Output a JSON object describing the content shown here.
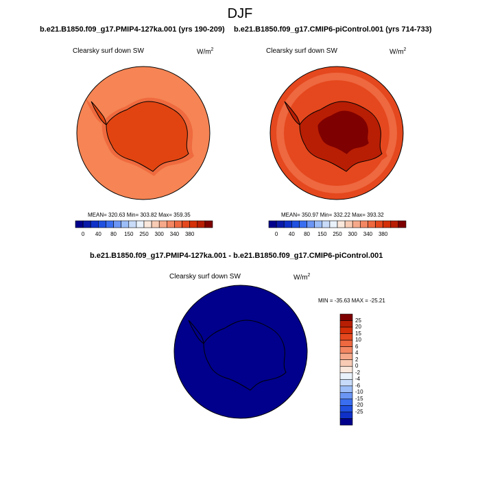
{
  "figure": {
    "season": "DJF"
  },
  "panels": [
    {
      "case": "b.e21.B1850.f09_g17.PMIP4-127ka.001 (yrs 190-209)",
      "variable": "Clearsky surf down SW",
      "units": "W/m",
      "units_exp": "2",
      "stats": "MEAN= 320.63 Min= 303.82 Max= 359.35"
    },
    {
      "case": "b.e21.B1850.f09_g17.CMIP6-piControl.001 (yrs 714-733)",
      "variable": "Clearsky surf down SW",
      "units": "W/m",
      "units_exp": "2",
      "stats": "MEAN= 350.97 Min= 332.22 Max= 393.32"
    },
    {
      "case": "b.e21.B1850.f09_g17.PMIP4-127ka.001 - b.e21.B1850.f09_g17.CMIP6-piControl.001",
      "variable": "Clearsky surf down SW",
      "units": "W/m",
      "units_exp": "2",
      "stats": "MIN = -35.63 MAX = -25.21"
    }
  ],
  "colorbars": {
    "absolute": {
      "labels": [
        "0",
        "40",
        "80",
        "150",
        "250",
        "300",
        "340",
        "380"
      ],
      "colors": [
        "#00008c",
        "#0a1aa8",
        "#0f31c8",
        "#1f50e0",
        "#3a6ef0",
        "#6b96f5",
        "#9cbdf7",
        "#c8dbf8",
        "#e9f1fb",
        "#fbe8dd",
        "#f8cbb4",
        "#f6a98a",
        "#f38763",
        "#ee6840",
        "#e5481e",
        "#d42f08",
        "#b81e04",
        "#7f0000"
      ]
    },
    "difference": {
      "labels": [
        "25",
        "20",
        "15",
        "10",
        "6",
        "4",
        "2",
        "0",
        "-2",
        "-4",
        "-6",
        "-10",
        "-15",
        "-20",
        "-25"
      ],
      "colors": [
        "#7f0000",
        "#b81e04",
        "#d42f08",
        "#e5481e",
        "#ee6840",
        "#f38763",
        "#f6a98a",
        "#f8cbb4",
        "#fbe8dd",
        "#e9f1fb",
        "#c8dbf8",
        "#9cbdf7",
        "#6b96f5",
        "#3a6ef0",
        "#1f50e0",
        "#0f31c8",
        "#00008c"
      ]
    }
  },
  "map_colors": {
    "p1_ocean": "#f68454",
    "p1_ring": "#ef6a3e",
    "p1_land": "#e14410",
    "p2_ocean": "#e5481e",
    "p2_band": "#ee6840",
    "p2_land": "#b81e04",
    "p2_core": "#7f0000",
    "diff_fill": "#00008c"
  }
}
